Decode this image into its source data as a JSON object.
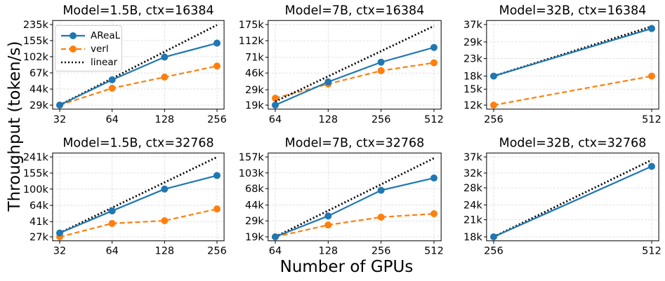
{
  "figure": {
    "ylabel": "Throughput (token/s)",
    "xlabel": "Number of GPUs"
  },
  "legend": {
    "placement": "upper-left of first panel",
    "items": [
      {
        "label": "AReaL",
        "color": "#1f77b4",
        "style": "solid",
        "marker": "circle"
      },
      {
        "label": "verl",
        "color": "#ff7f0e",
        "style": "dashed",
        "marker": "circle"
      },
      {
        "label": "linear",
        "color": "#000000",
        "style": "dotted",
        "marker": "none"
      }
    ]
  },
  "chart_data": [
    {
      "type": "line",
      "title": "Model=1.5B, ctx=16384",
      "x": [
        32,
        64,
        128,
        256
      ],
      "x_scale": "log2",
      "ylim": [
        29,
        235
      ],
      "y_scale": "log",
      "yticks": [
        29,
        44,
        67,
        102,
        155,
        235
      ],
      "ytick_labels": [
        "29k",
        "44k",
        "67k",
        "102k",
        "155k",
        "235k"
      ],
      "series": [
        {
          "name": "AReaL",
          "values": [
            29,
            56,
            101,
            145
          ]
        },
        {
          "name": "verl",
          "values": [
            29,
            45,
            60,
            80
          ]
        },
        {
          "name": "linear",
          "values": [
            29,
            58,
            116,
            232
          ]
        }
      ]
    },
    {
      "type": "line",
      "title": "Model=7B, ctx=16384",
      "x": [
        64,
        128,
        256,
        512
      ],
      "x_scale": "log2",
      "ylim": [
        19,
        175
      ],
      "y_scale": "log",
      "yticks": [
        19,
        29,
        46,
        71,
        112,
        175
      ],
      "ytick_labels": [
        "19k",
        "29k",
        "46k",
        "71k",
        "112k",
        "175k"
      ],
      "series": [
        {
          "name": "AReaL",
          "values": [
            19,
            36,
            62,
            93
          ]
        },
        {
          "name": "verl",
          "values": [
            23,
            34,
            49,
            61
          ]
        },
        {
          "name": "linear",
          "values": [
            21,
            42,
            84,
            168
          ]
        }
      ]
    },
    {
      "type": "line",
      "title": "Model=32B, ctx=16384",
      "x": [
        256,
        512
      ],
      "x_scale": "log2",
      "ylim": [
        12,
        37
      ],
      "y_scale": "log",
      "yticks": [
        12,
        15,
        18,
        23,
        29,
        37
      ],
      "ytick_labels": [
        "12k",
        "15k",
        "18k",
        "23k",
        "29k",
        "37k"
      ],
      "series": [
        {
          "name": "AReaL",
          "values": [
            18,
            35
          ]
        },
        {
          "name": "verl",
          "values": [
            12,
            18
          ]
        },
        {
          "name": "linear",
          "values": [
            18,
            36
          ]
        }
      ]
    },
    {
      "type": "line",
      "title": "Model=1.5B, ctx=32768",
      "x": [
        32,
        64,
        128,
        256
      ],
      "x_scale": "log2",
      "ylim": [
        27,
        241
      ],
      "y_scale": "log",
      "yticks": [
        27,
        41,
        64,
        100,
        155,
        241
      ],
      "ytick_labels": [
        "27k",
        "41k",
        "64k",
        "100k",
        "155k",
        "241k"
      ],
      "series": [
        {
          "name": "AReaL",
          "values": [
            30,
            55,
            100,
            145
          ]
        },
        {
          "name": "verl",
          "values": [
            27,
            39,
            42,
            58
          ]
        },
        {
          "name": "linear",
          "values": [
            30,
            60,
            120,
            240
          ]
        }
      ]
    },
    {
      "type": "line",
      "title": "Model=7B, ctx=32768",
      "x": [
        64,
        128,
        256,
        512
      ],
      "x_scale": "log2",
      "ylim": [
        19,
        157
      ],
      "y_scale": "log",
      "yticks": [
        19,
        29,
        44,
        68,
        103,
        157
      ],
      "ytick_labels": [
        "19k",
        "29k",
        "44k",
        "68k",
        "103k",
        "157k"
      ],
      "series": [
        {
          "name": "AReaL",
          "values": [
            19,
            33,
            65,
            90
          ]
        },
        {
          "name": "verl",
          "values": [
            19,
            26,
            32,
            35
          ]
        },
        {
          "name": "linear",
          "values": [
            19,
            38,
            76,
            152
          ]
        }
      ]
    },
    {
      "type": "line",
      "title": "Model=32B, ctx=32768",
      "x": [
        256,
        512
      ],
      "x_scale": "log2",
      "ylim": [
        18,
        37
      ],
      "y_scale": "log",
      "yticks": [
        18,
        21,
        24,
        28,
        32,
        37
      ],
      "ytick_labels": [
        "18k",
        "21k",
        "24k",
        "28k",
        "32k",
        "37k"
      ],
      "series": [
        {
          "name": "AReaL",
          "values": [
            18,
            34
          ]
        },
        {
          "name": "linear",
          "values": [
            18,
            36
          ]
        }
      ]
    }
  ]
}
